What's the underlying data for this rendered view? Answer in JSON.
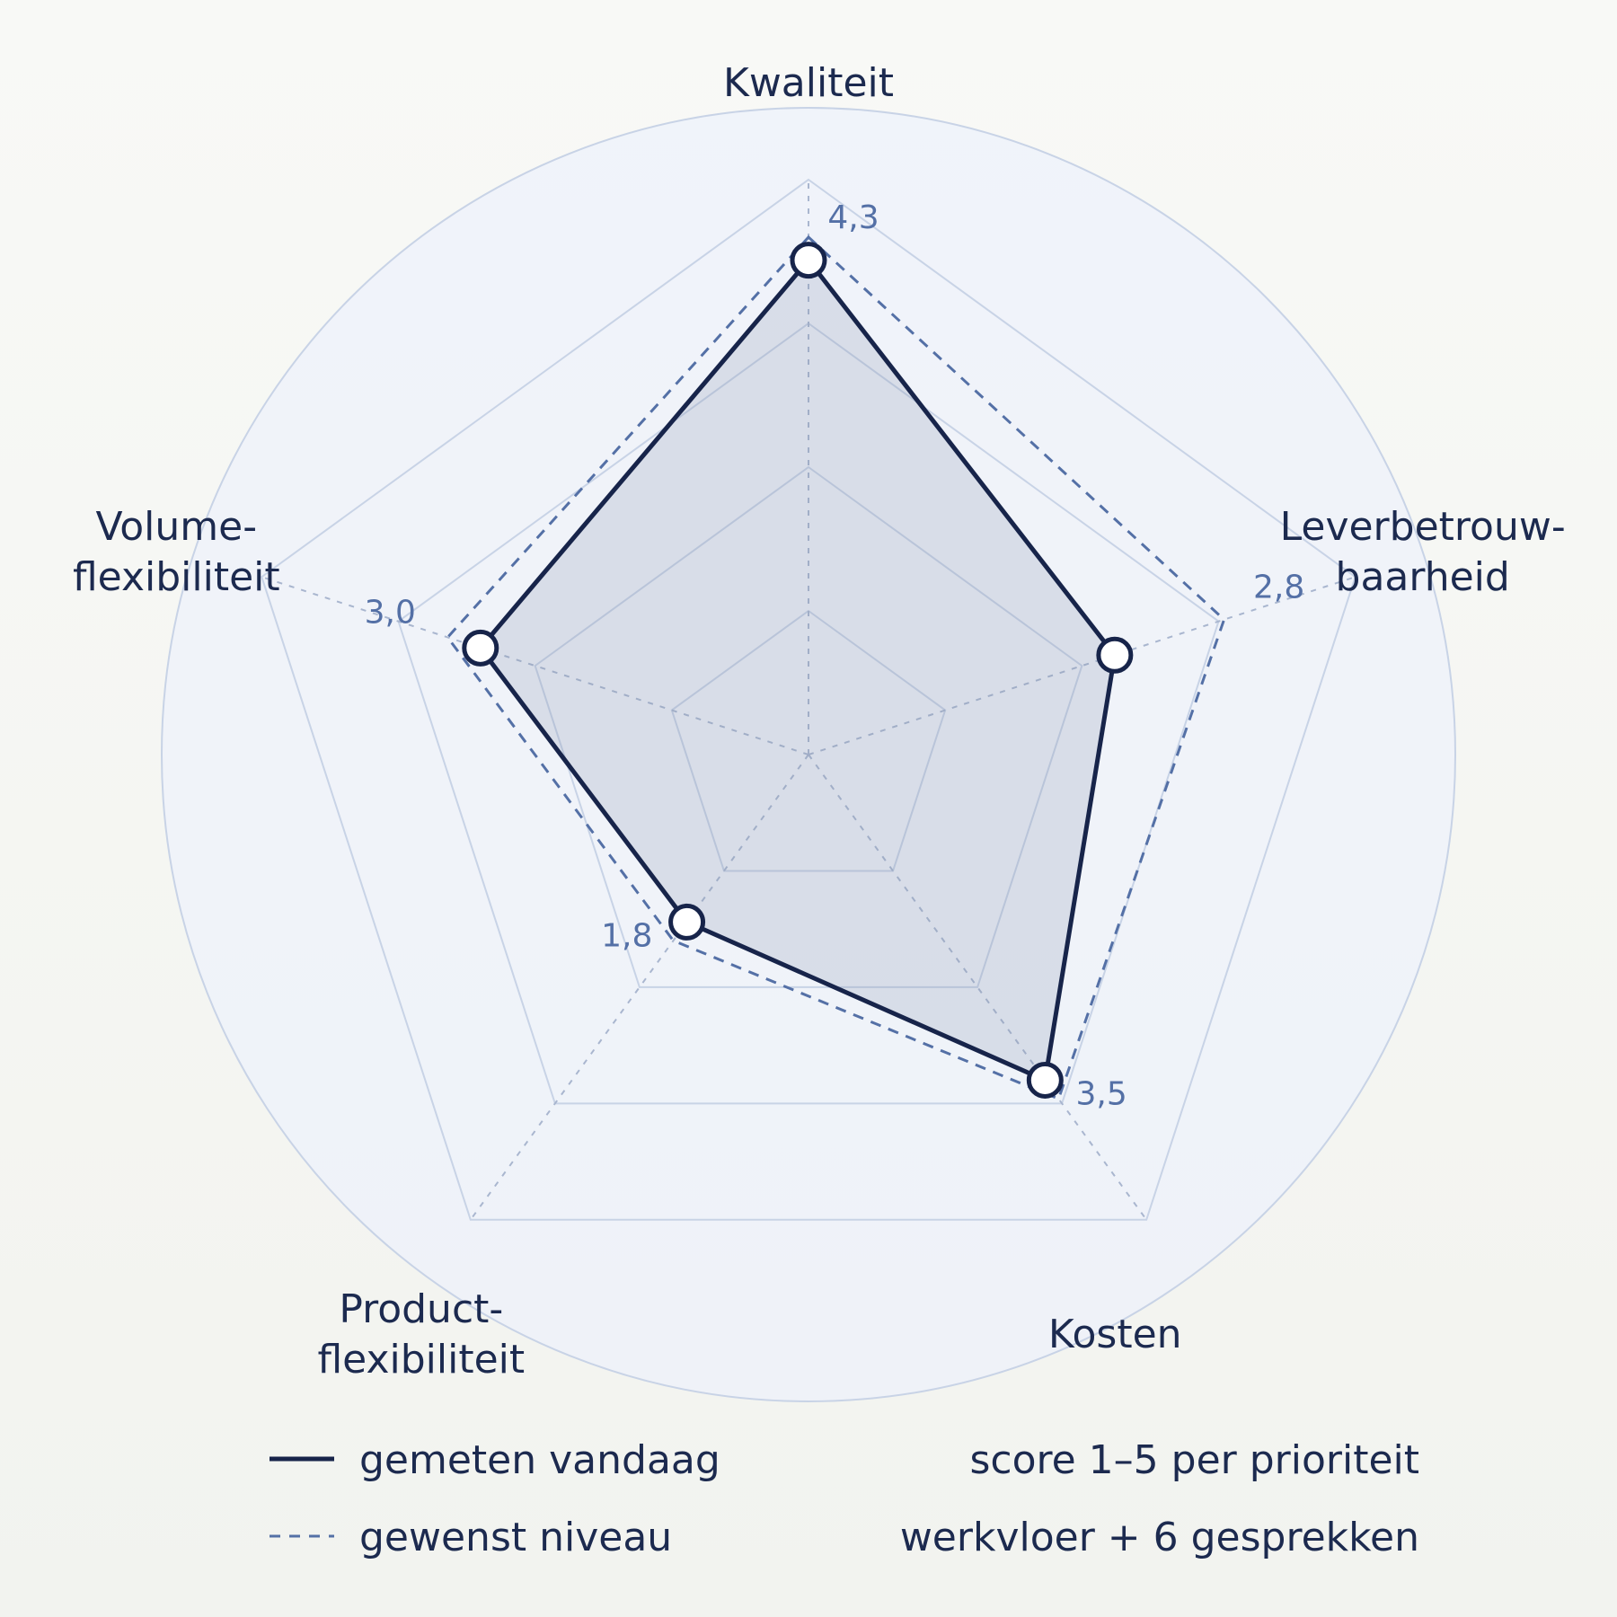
{
  "chart_data": {
    "type": "radar",
    "axes": [
      {
        "label_lines": [
          "Kwaliteit"
        ],
        "value_label": "4,3"
      },
      {
        "label_lines": [
          "Leverbetrouw-",
          "baarheid"
        ],
        "value_label": "2,8"
      },
      {
        "label_lines": [
          "Kosten"
        ],
        "value_label": "3,5"
      },
      {
        "label_lines": [
          "Product-",
          "flexibiliteit"
        ],
        "value_label": "1,8"
      },
      {
        "label_lines": [
          "Volume-",
          "flexibiliteit"
        ],
        "value_label": "3,0"
      }
    ],
    "scale": [
      0,
      5
    ],
    "series": [
      {
        "name": "gemeten vandaag",
        "style": "solid",
        "values": [
          4.3,
          2.8,
          3.5,
          1.8,
          3.0
        ]
      },
      {
        "name": "gewenst niveau",
        "style": "dashed",
        "values": [
          4.5,
          3.8,
          3.7,
          2.0,
          3.3
        ]
      }
    ],
    "notes": [
      "score 1–5 per prioriteit",
      "werkvloer + 6 gesprekken"
    ],
    "colors": {
      "measured": "#17244a",
      "target": "#5470a6",
      "fill": "#8592ad",
      "grid": "#c8d3e6",
      "disc": "#edf2fb"
    }
  }
}
